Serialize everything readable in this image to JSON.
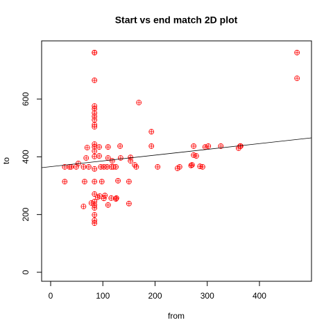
{
  "chart_data": {
    "type": "scatter",
    "title": "Start vs end match 2D plot",
    "x_label": "from",
    "y_label": "to",
    "color": "#ff0000",
    "x": [
      84,
      84,
      472,
      472,
      84,
      169,
      84,
      84,
      84,
      84,
      84,
      84,
      84,
      193,
      84,
      84,
      84,
      84,
      84,
      84,
      84,
      84,
      84,
      84,
      84,
      84,
      193,
      205,
      27,
      27,
      36,
      39,
      49,
      53,
      63,
      65,
      73,
      68,
      70,
      93,
      93,
      96,
      98,
      102,
      108,
      110,
      110,
      116,
      118,
      120,
      125,
      129,
      134,
      133,
      102,
      104,
      94,
      116,
      125,
      126,
      110,
      150,
      153,
      153,
      150,
      161,
      164,
      243,
      247,
      269,
      271,
      274,
      274,
      279,
      286,
      291,
      296,
      302,
      326,
      360,
      363,
      364,
      63,
      84,
      90,
      78
    ],
    "values": [
      761,
      761,
      761,
      672,
      665,
      588,
      576,
      566,
      552,
      540,
      528,
      511,
      504,
      487,
      444,
      434,
      420,
      401,
      358,
      314,
      271,
      233,
      223,
      199,
      180,
      170,
      437,
      365,
      365,
      314,
      365,
      365,
      365,
      377,
      365,
      314,
      365,
      396,
      432,
      434,
      403,
      365,
      314,
      365,
      365,
      396,
      434,
      365,
      386,
      365,
      365,
      317,
      396,
      437,
      256,
      266,
      264,
      257,
      254,
      257,
      233,
      238,
      398,
      386,
      314,
      372,
      365,
      360,
      365,
      370,
      372,
      406,
      437,
      403,
      367,
      365,
      434,
      437,
      437,
      430,
      437,
      437,
      228,
      245,
      260,
      240
    ],
    "trend_line": {
      "color": "#000000",
      "x": [
        -17.3,
        499.7
      ],
      "values": [
        362.4,
        465.6
      ]
    },
    "xlim": [
      -17.3,
      499.7
    ],
    "ylim": [
      -31.2,
      801.6
    ],
    "xticks": [
      0,
      100,
      200,
      300,
      400
    ],
    "yticks": [
      0,
      200,
      400,
      600
    ]
  }
}
